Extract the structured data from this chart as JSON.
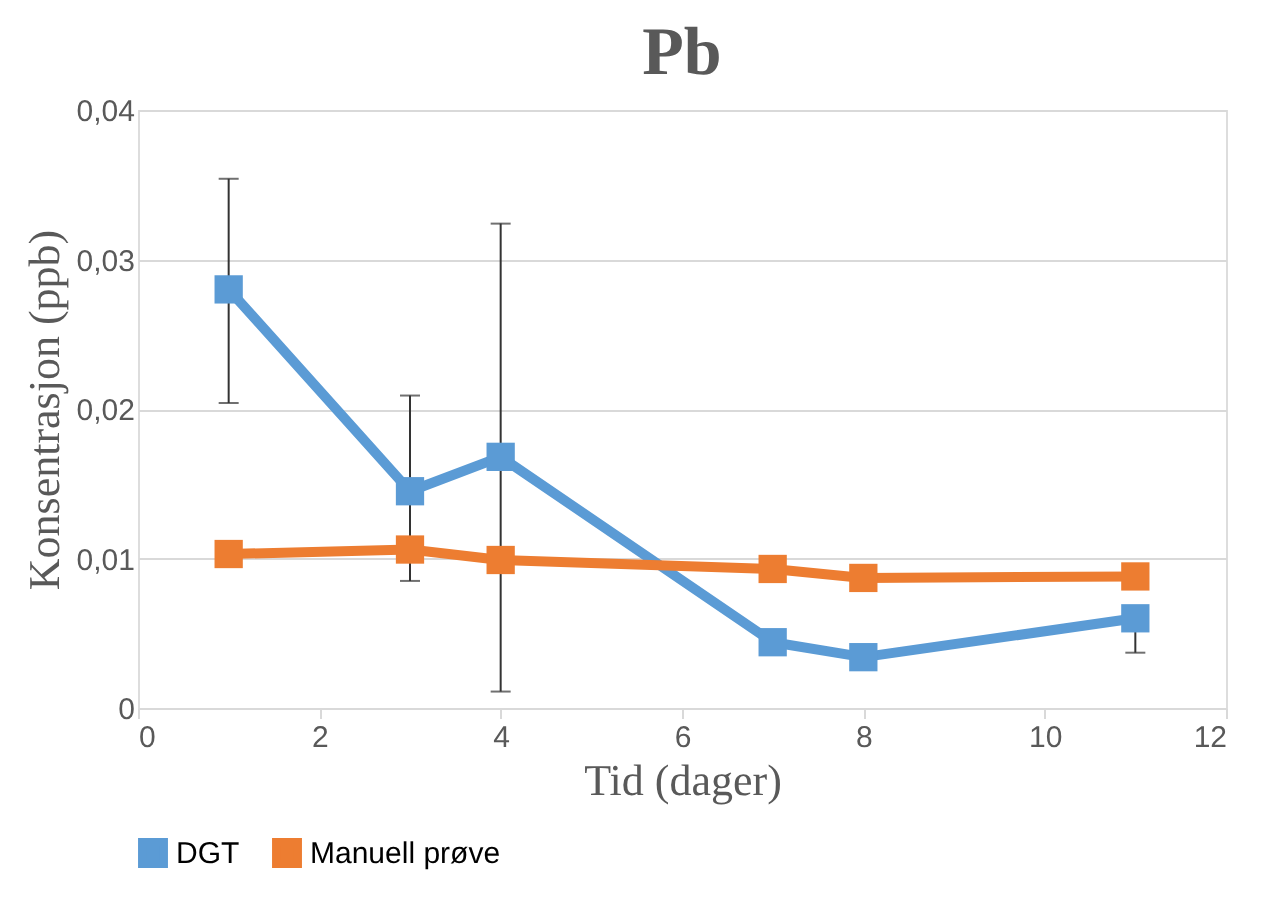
{
  "chart_data": {
    "type": "line",
    "title": "Pb",
    "xlabel": "Tid (dager)",
    "ylabel": "Konsentrasjon (ppb)",
    "x": [
      1,
      3,
      4,
      7,
      8,
      11
    ],
    "series": [
      {
        "name": "DGT",
        "color": "#5b9bd5",
        "values": [
          0.028,
          0.0145,
          0.0168,
          0.0044,
          0.0034,
          0.006
        ],
        "errors": [
          [
            0.0204,
            0.0354
          ],
          [
            0.0085,
            0.0209
          ],
          [
            0.0011,
            0.0324
          ],
          null,
          null,
          [
            0.0037,
            0.006
          ]
        ]
      },
      {
        "name": "Manuell prøve",
        "color": "#ed7d31",
        "values": [
          0.0103,
          0.0106,
          0.0099,
          0.0093,
          0.0087,
          0.0088
        ]
      }
    ],
    "xlim": [
      0,
      12
    ],
    "xticks": [
      0,
      2,
      4,
      6,
      8,
      10,
      12
    ],
    "ylim": [
      0,
      0.04
    ],
    "yticks": [
      0,
      {
        "value": 0.01,
        "label": "0,01"
      },
      {
        "value": 0.02,
        "label": "0,02"
      },
      {
        "value": 0.03,
        "label": "0,03"
      },
      {
        "value": 0.04,
        "label": "0,04"
      }
    ],
    "grid": "y",
    "legend": "bottom",
    "marker": "square",
    "line_style": "solid"
  }
}
